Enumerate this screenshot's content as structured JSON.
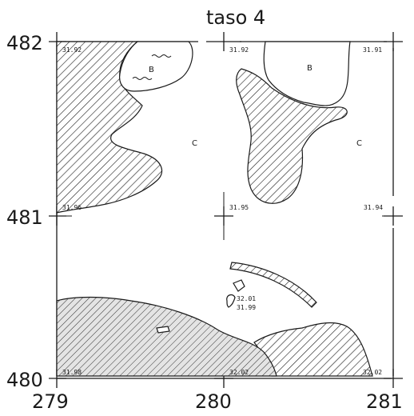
{
  "title": "taso 4",
  "axes": {
    "y_labels": {
      "top": "482",
      "middle": "481",
      "bottom": "480"
    },
    "x_labels": {
      "left": "279",
      "middle": "280",
      "right": "281"
    }
  },
  "elevations": {
    "e_482_279": "31.92",
    "e_482_280": "31.92",
    "e_482_281": "31.91",
    "e_481_279": "31.96",
    "e_481_280": "31.95",
    "e_481_281": "31.94",
    "e_480_279": "31.98",
    "e_480_280": "32.02",
    "e_480_281": "32.02",
    "stone_top": "32.01",
    "stone_bottom": "31.99"
  },
  "zone_labels": {
    "b_left": "B",
    "b_right": "B",
    "c_left": "C",
    "c_right": "C"
  },
  "colors": {
    "ink": "#1a1a1a",
    "paper": "#ffffff"
  }
}
